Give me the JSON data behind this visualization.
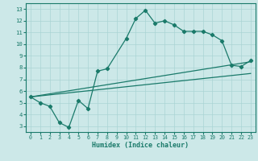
{
  "xlabel": "Humidex (Indice chaleur)",
  "bg_color": "#cce8e8",
  "line_color": "#1a7a6a",
  "grid_color": "#aad4d4",
  "xlim": [
    -0.5,
    23.5
  ],
  "ylim": [
    2.5,
    13.5
  ],
  "xticks": [
    0,
    1,
    2,
    3,
    4,
    5,
    6,
    7,
    8,
    9,
    10,
    11,
    12,
    13,
    14,
    15,
    16,
    17,
    18,
    19,
    20,
    21,
    22,
    23
  ],
  "yticks": [
    3,
    4,
    5,
    6,
    7,
    8,
    9,
    10,
    11,
    12,
    13
  ],
  "line1_x": [
    0,
    1,
    2,
    3,
    4,
    5,
    6,
    7,
    8,
    10,
    11,
    12,
    13,
    14,
    15,
    16,
    17,
    18,
    19,
    20,
    21,
    22,
    23
  ],
  "line1_y": [
    5.5,
    5.0,
    4.7,
    3.3,
    2.9,
    5.2,
    4.5,
    7.7,
    7.9,
    10.5,
    12.2,
    12.9,
    11.8,
    12.0,
    11.65,
    11.1,
    11.1,
    11.1,
    10.8,
    10.3,
    8.2,
    8.1,
    8.6
  ],
  "line2_x": [
    0,
    23
  ],
  "line2_y": [
    5.5,
    7.5
  ],
  "line3_x": [
    0,
    23
  ],
  "line3_y": [
    5.5,
    8.5
  ]
}
